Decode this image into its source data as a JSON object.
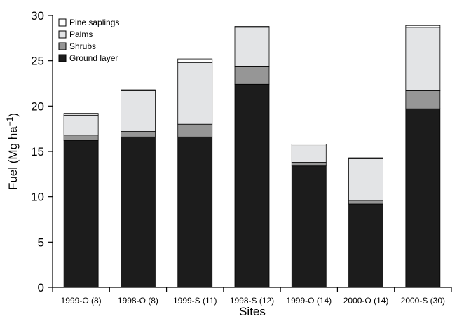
{
  "chart_data": {
    "type": "bar",
    "stacked": true,
    "title": "",
    "xlabel": "Sites",
    "ylabel": "Fuel (Mg ha⁻¹)",
    "ylabel_main": "Fuel (Mg ha",
    "ylabel_sup": "−1",
    "ylabel_close": ")",
    "ylim": [
      0,
      30
    ],
    "yticks": [
      "0",
      "5",
      "10",
      "15",
      "20",
      "25",
      "30"
    ],
    "grid": false,
    "legend_position": "top-left",
    "categories": [
      "1999-O (8)",
      "1998-O (8)",
      "1999-S (11)",
      "1998-S (12)",
      "1999-O (14)",
      "2000-O (14)",
      "2000-S (30)"
    ],
    "series": [
      {
        "name": "Ground layer",
        "color": "#1c1c1c",
        "values": [
          16.2,
          16.6,
          16.6,
          22.4,
          13.4,
          9.2,
          19.7
        ]
      },
      {
        "name": "Shrubs",
        "color": "#969696",
        "values": [
          0.6,
          0.6,
          1.4,
          2.0,
          0.4,
          0.4,
          2.0
        ]
      },
      {
        "name": "Palms",
        "color": "#e3e4e6",
        "values": [
          2.2,
          4.5,
          6.8,
          4.3,
          1.8,
          4.6,
          7.0
        ]
      },
      {
        "name": "Pine saplings",
        "color": "#ffffff",
        "values": [
          0.2,
          0.1,
          0.4,
          0.1,
          0.2,
          0.1,
          0.2
        ]
      }
    ],
    "legend_order": [
      "Pine saplings",
      "Palms",
      "Shrubs",
      "Ground layer"
    ]
  }
}
